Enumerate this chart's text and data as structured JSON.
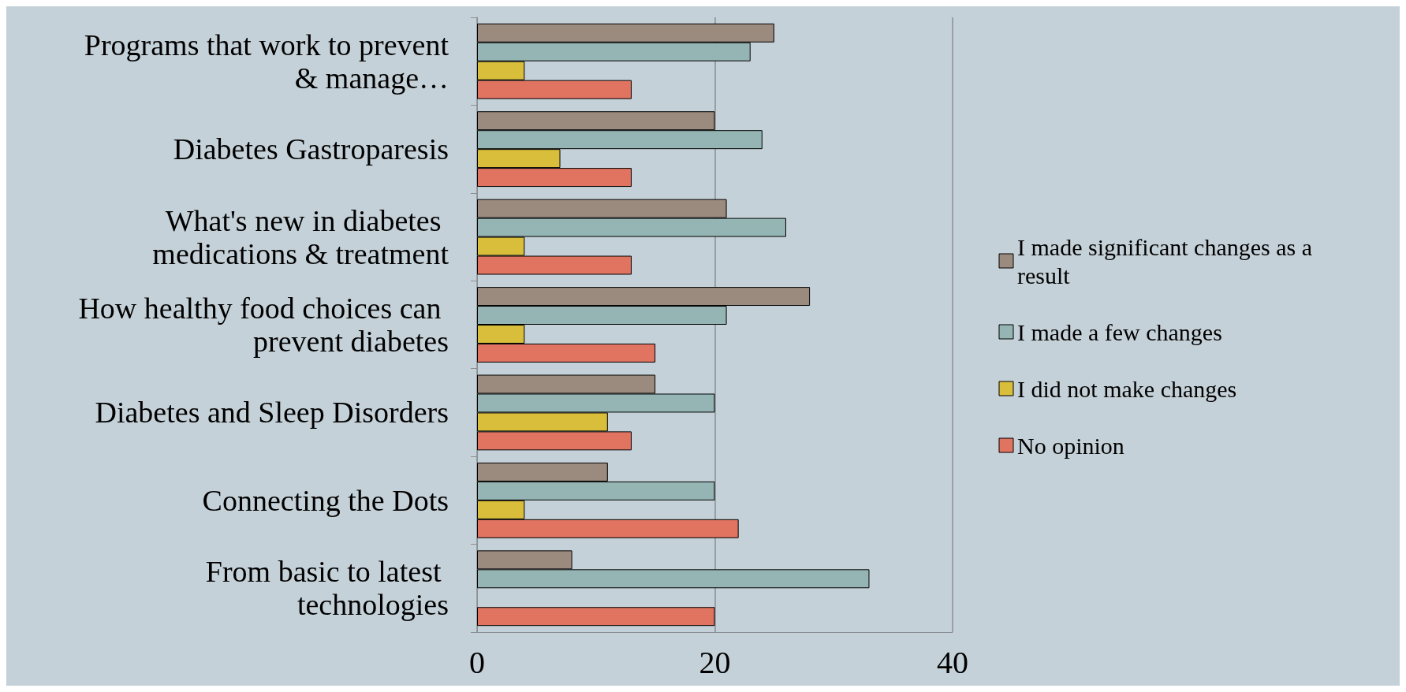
{
  "chart_data": {
    "type": "bar",
    "orientation": "horizontal",
    "categories": [
      "Programs that work to prevent & manage…",
      "Diabetes Gastroparesis",
      "What's new in diabetes medications & treatment",
      "How healthy food choices can prevent diabetes",
      "Diabetes and Sleep Disorders",
      "Connecting the Dots",
      "From basic to latest technologies"
    ],
    "series": [
      {
        "name": "I made significant changes as a result",
        "color": "#9b8a7e",
        "values": [
          25,
          20,
          21,
          28,
          15,
          11,
          8
        ]
      },
      {
        "name": "I made a few changes",
        "color": "#94b5b3",
        "values": [
          23,
          24,
          26,
          21,
          20,
          20,
          33
        ]
      },
      {
        "name": "I did not make changes",
        "color": "#d8be3a",
        "values": [
          4,
          7,
          4,
          4,
          11,
          4,
          0
        ]
      },
      {
        "name": "No opinion",
        "color": "#e07461",
        "values": [
          13,
          13,
          13,
          15,
          13,
          22,
          20
        ]
      }
    ],
    "xlim": [
      0,
      40
    ],
    "xticks": [
      0,
      20,
      40
    ],
    "grid": "x",
    "legend": "right"
  }
}
